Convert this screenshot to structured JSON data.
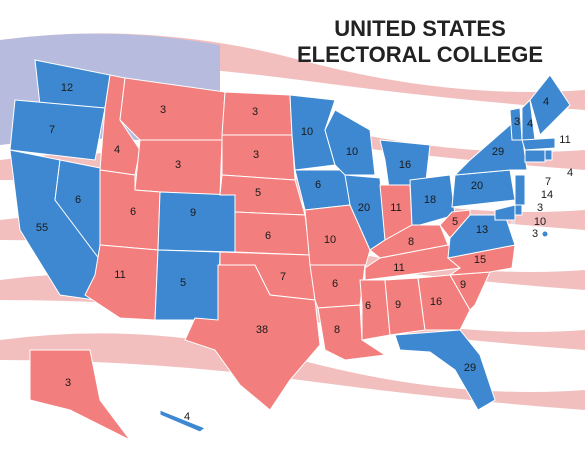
{
  "map": {
    "title": [
      "UNITED STATES",
      "ELECTORAL COLLEGE"
    ],
    "states": [
      {
        "votes": 12,
        "color": "#3d88d0"
      },
      {
        "votes": 7,
        "color": "#3d88d0"
      },
      {
        "votes": 55,
        "color": "#3d88d0"
      },
      {
        "votes": 6,
        "color": "#3d88d0"
      },
      {
        "votes": 4,
        "color": "#f27f7d"
      },
      {
        "votes": 3,
        "color": "#f27f7d"
      },
      {
        "votes": 3,
        "color": "#f27f7d"
      },
      {
        "votes": 6,
        "color": "#f27f7d"
      },
      {
        "votes": 11,
        "color": "#f27f7d"
      },
      {
        "votes": 9,
        "color": "#3d88d0"
      },
      {
        "votes": 5,
        "color": "#3d88d0"
      },
      {
        "votes": 3,
        "color": "#f27f7d"
      },
      {
        "votes": 3,
        "color": "#f27f7d"
      },
      {
        "votes": 5,
        "color": "#f27f7d"
      },
      {
        "votes": 6,
        "color": "#f27f7d"
      },
      {
        "votes": 7,
        "color": "#f27f7d"
      },
      {
        "votes": 38,
        "color": "#f27f7d"
      },
      {
        "votes": 10,
        "color": "#3d88d0"
      },
      {
        "votes": 6,
        "color": "#3d88d0"
      },
      {
        "votes": 10,
        "color": "#f27f7d"
      },
      {
        "votes": 6,
        "color": "#f27f7d"
      },
      {
        "votes": 8,
        "color": "#f27f7d"
      },
      {
        "votes": 10,
        "color": "#3d88d0"
      },
      {
        "votes": 20,
        "color": "#3d88d0"
      },
      {
        "votes": 16,
        "color": "#3d88d0"
      },
      {
        "votes": 11,
        "color": "#f27f7d"
      },
      {
        "votes": 18,
        "color": "#3d88d0"
      },
      {
        "votes": 8,
        "color": "#f27f7d"
      },
      {
        "votes": 11,
        "color": "#f27f7d"
      },
      {
        "votes": 6,
        "color": "#f27f7d"
      },
      {
        "votes": 9,
        "color": "#f27f7d"
      },
      {
        "votes": 16,
        "color": "#f27f7d"
      },
      {
        "votes": 29,
        "color": "#3d88d0"
      },
      {
        "votes": 9,
        "color": "#f27f7d"
      },
      {
        "votes": 15,
        "color": "#f27f7d"
      },
      {
        "votes": 13,
        "color": "#3d88d0"
      },
      {
        "votes": 5,
        "color": "#f27f7d"
      },
      {
        "votes": 20,
        "color": "#3d88d0"
      },
      {
        "votes": 29,
        "color": "#3d88d0"
      },
      {
        "votes": 3,
        "color": "#3d88d0"
      },
      {
        "votes": 4,
        "color": "#3d88d0"
      },
      {
        "votes": 4,
        "color": "#3d88d0"
      },
      {
        "votes": 11,
        "color": "#3d88d0"
      },
      {
        "votes": 4,
        "color": "#3d88d0"
      },
      {
        "votes": 7,
        "color": "#3d88d0"
      },
      {
        "votes": 14,
        "color": "#3d88d0"
      },
      {
        "votes": 3,
        "color": "#3d88d0"
      },
      {
        "votes": 10,
        "color": "#3d88d0"
      },
      {
        "votes": 3,
        "color": "#3d88d0"
      },
      {
        "votes": 3,
        "color": "#f27f7d"
      },
      {
        "votes": 4,
        "color": "#3d88d0"
      }
    ]
  }
}
